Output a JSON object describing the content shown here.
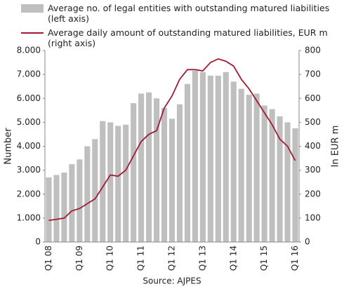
{
  "chart_data": {
    "type": "bar_line",
    "categories": [
      "Q1 08",
      null,
      null,
      null,
      "Q1 09",
      null,
      null,
      null,
      "Q1 10",
      null,
      null,
      null,
      "Q1 11",
      null,
      null,
      null,
      "Q1 12",
      null,
      null,
      null,
      "Q1 13",
      null,
      null,
      null,
      "Q1 14",
      null,
      null,
      null,
      "Q1 15",
      null,
      null,
      null,
      "Q1 16"
    ],
    "series": [
      {
        "name": "Average no. of legal entities with outstanding matured liabilities (left axis)",
        "type": "bar",
        "color": "#bfbfbf",
        "values": [
          2700,
          2800,
          2900,
          3250,
          3450,
          4000,
          4300,
          5050,
          5000,
          4850,
          4900,
          5800,
          6200,
          6250,
          6000,
          5600,
          5150,
          5750,
          6600,
          7150,
          7100,
          6950,
          6950,
          7100,
          6700,
          6400,
          6150,
          6200,
          5700,
          5550,
          5250,
          5000,
          4750
        ]
      },
      {
        "name": "Average daily amount of outstanding matured liabilities, EUR m (right axis)",
        "type": "line",
        "color": "#a31a35",
        "axis": "y2",
        "values": [
          90,
          95,
          100,
          130,
          140,
          160,
          180,
          230,
          280,
          275,
          300,
          360,
          420,
          450,
          465,
          560,
          610,
          680,
          720,
          720,
          715,
          750,
          765,
          755,
          735,
          680,
          640,
          590,
          540,
          490,
          430,
          400,
          340
        ]
      }
    ],
    "ylabel": "Number",
    "y2label": "In EUR m",
    "source": "Source: AJPES",
    "ylim": [
      0,
      8000
    ],
    "yticks": [
      0,
      {
        "value": 1000,
        "label": "1.000"
      },
      {
        "value": 2000,
        "label": "2.000"
      },
      {
        "value": 3000,
        "label": "3.000"
      },
      {
        "value": 4000,
        "label": "4.000"
      },
      {
        "value": 5000,
        "label": "5.000"
      },
      {
        "value": 6000,
        "label": "6.000"
      },
      {
        "value": 7000,
        "label": "7.000"
      },
      {
        "value": 8000,
        "label": "8.000"
      }
    ],
    "y2lim": [
      0,
      800
    ],
    "y2ticks": [
      0,
      100,
      200,
      300,
      400,
      500,
      600,
      700,
      800
    ],
    "grid": false
  }
}
